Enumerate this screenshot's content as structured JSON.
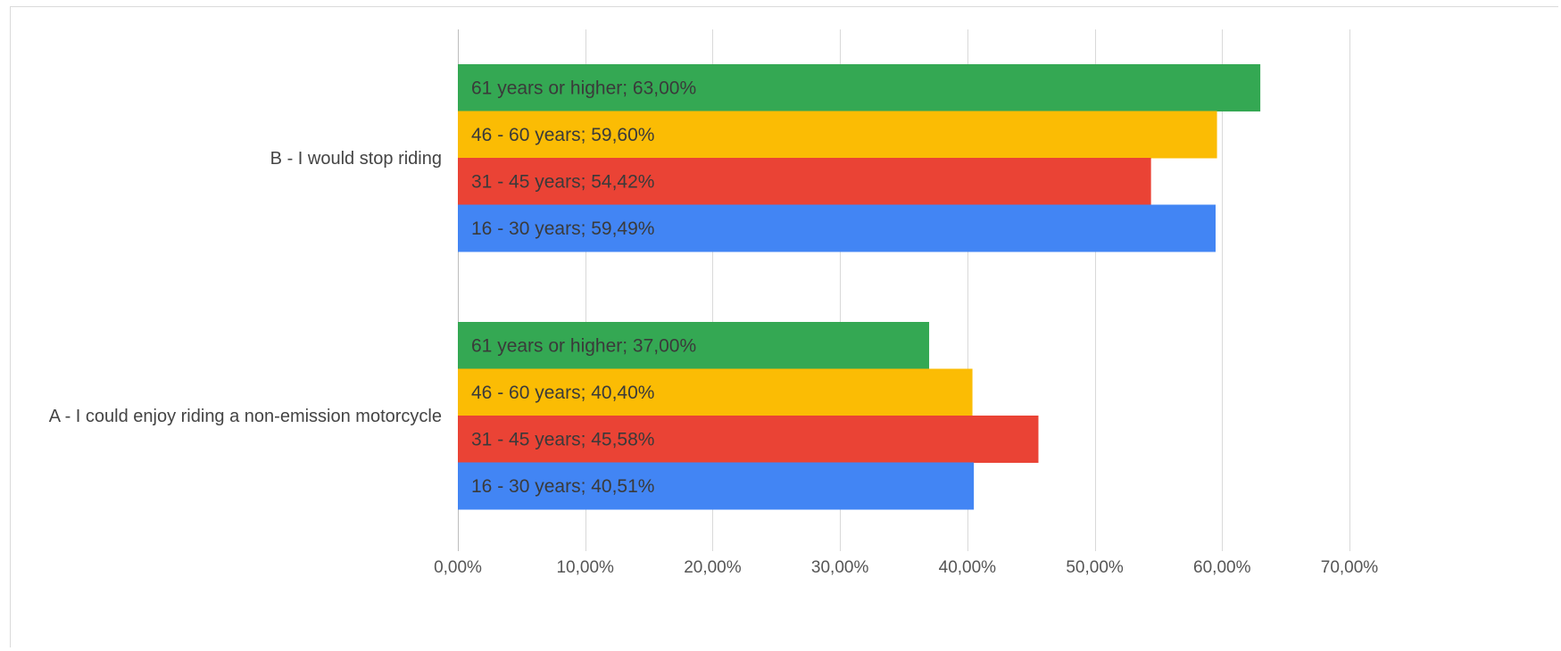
{
  "chart_data": {
    "type": "bar",
    "orientation": "horizontal",
    "categories": [
      "B - I would stop riding",
      "A - I could enjoy riding a non-emission motorcycle"
    ],
    "series": [
      {
        "name": "61 years or higher",
        "color": "#34a853",
        "values": [
          63.0,
          37.0
        ],
        "labels": [
          "61 years or higher; 63,00%",
          "61 years or higher; 37,00%"
        ]
      },
      {
        "name": "46 - 60 years",
        "color": "#fbbc04",
        "values": [
          59.6,
          40.4
        ],
        "labels": [
          "46 - 60 years; 59,60%",
          "46 - 60 years; 40,40%"
        ]
      },
      {
        "name": "31 - 45 years",
        "color": "#ea4335",
        "values": [
          54.42,
          45.58
        ],
        "labels": [
          "31 - 45 years; 54,42%",
          "31 - 45 years; 45,58%"
        ]
      },
      {
        "name": "16 - 30 years",
        "color": "#4285f4",
        "values": [
          59.49,
          40.51
        ],
        "labels": [
          "16 - 30 years; 59,49%",
          "16 - 30 years; 40,51%"
        ]
      }
    ],
    "xlim": [
      0,
      70
    ],
    "xticks": [
      0,
      10,
      20,
      30,
      40,
      50,
      60,
      70
    ],
    "xtick_labels": [
      "0,00%",
      "10,00%",
      "20,00%",
      "30,00%",
      "40,00%",
      "50,00%",
      "60,00%",
      "70,00%"
    ],
    "grid": true,
    "legend": "none",
    "title": "",
    "xlabel": "",
    "ylabel": ""
  }
}
